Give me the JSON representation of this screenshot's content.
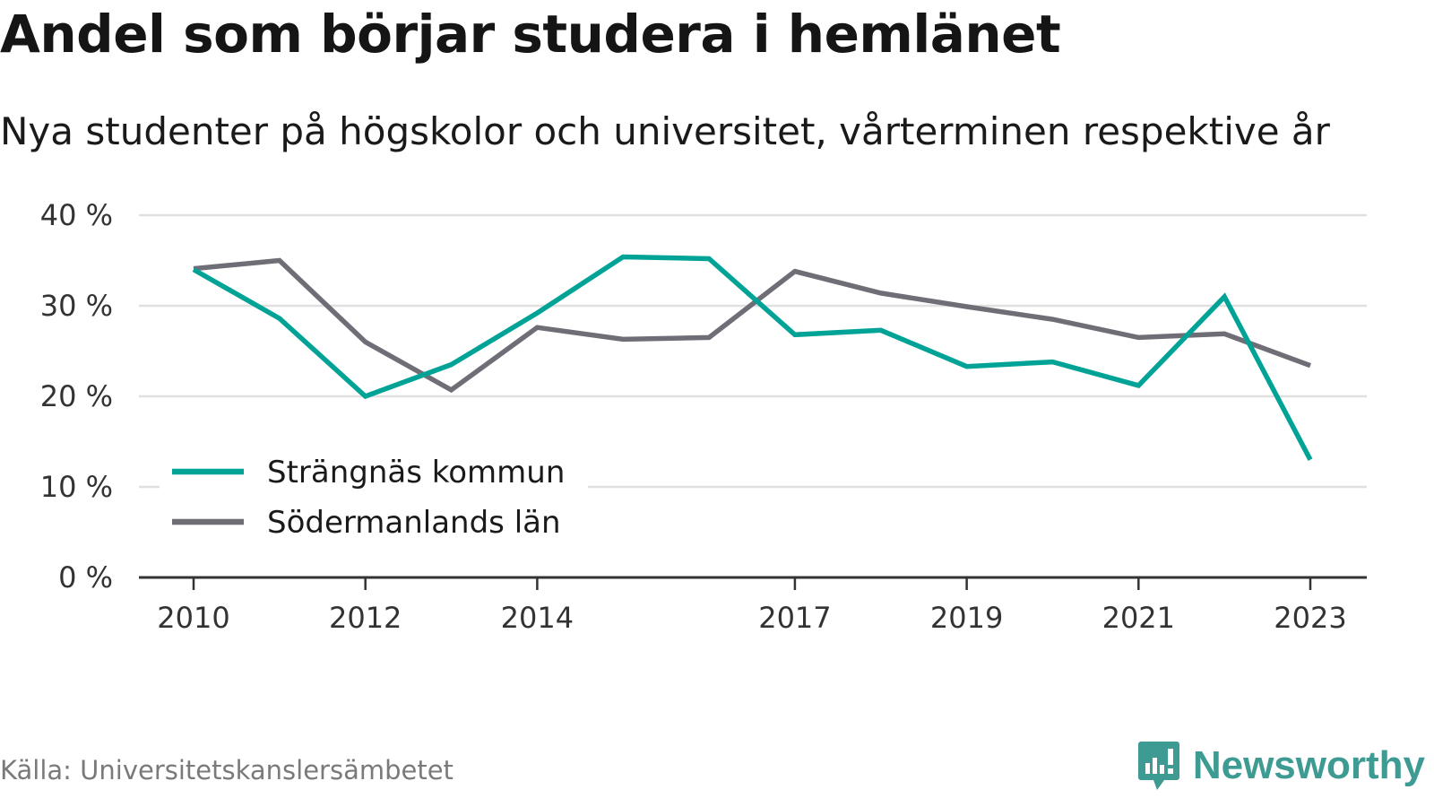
{
  "title": "Andel som börjar studera i hemlänet",
  "subtitle": "Nya studenter på högskolor och universitet, vårterminen respektive år",
  "source": "Källa: Universitetskanslersämbetet",
  "brand": {
    "name": "Newsworthy",
    "icon": "newsworthy-logo-icon",
    "color": "#3d9b93"
  },
  "chart_data": {
    "type": "line",
    "x": [
      2010,
      2011,
      2012,
      2013,
      2014,
      2015,
      2016,
      2017,
      2018,
      2019,
      2020,
      2021,
      2022,
      2023
    ],
    "x_ticks": [
      2010,
      2012,
      2014,
      2017,
      2019,
      2021,
      2023
    ],
    "y_ticks": [
      0,
      10,
      20,
      30,
      40
    ],
    "y_tick_labels": [
      "0 %",
      "10 %",
      "20 %",
      "30 %",
      "40 %"
    ],
    "ylim": [
      0,
      40
    ],
    "grid": true,
    "legend_position": "bottom-left",
    "series": [
      {
        "name": "Strängnäs kommun",
        "color": "#00a396",
        "values": [
          34,
          28.6,
          20,
          23.5,
          29.2,
          35.4,
          35.2,
          26.8,
          27.3,
          23.3,
          23.8,
          21.2,
          31,
          13
        ]
      },
      {
        "name": "Södermanlands län",
        "color": "#6f6e77",
        "values": [
          34.1,
          35,
          26,
          20.7,
          27.6,
          26.3,
          26.5,
          33.8,
          31.4,
          29.9,
          28.5,
          26.5,
          26.9,
          23.4
        ]
      }
    ]
  }
}
